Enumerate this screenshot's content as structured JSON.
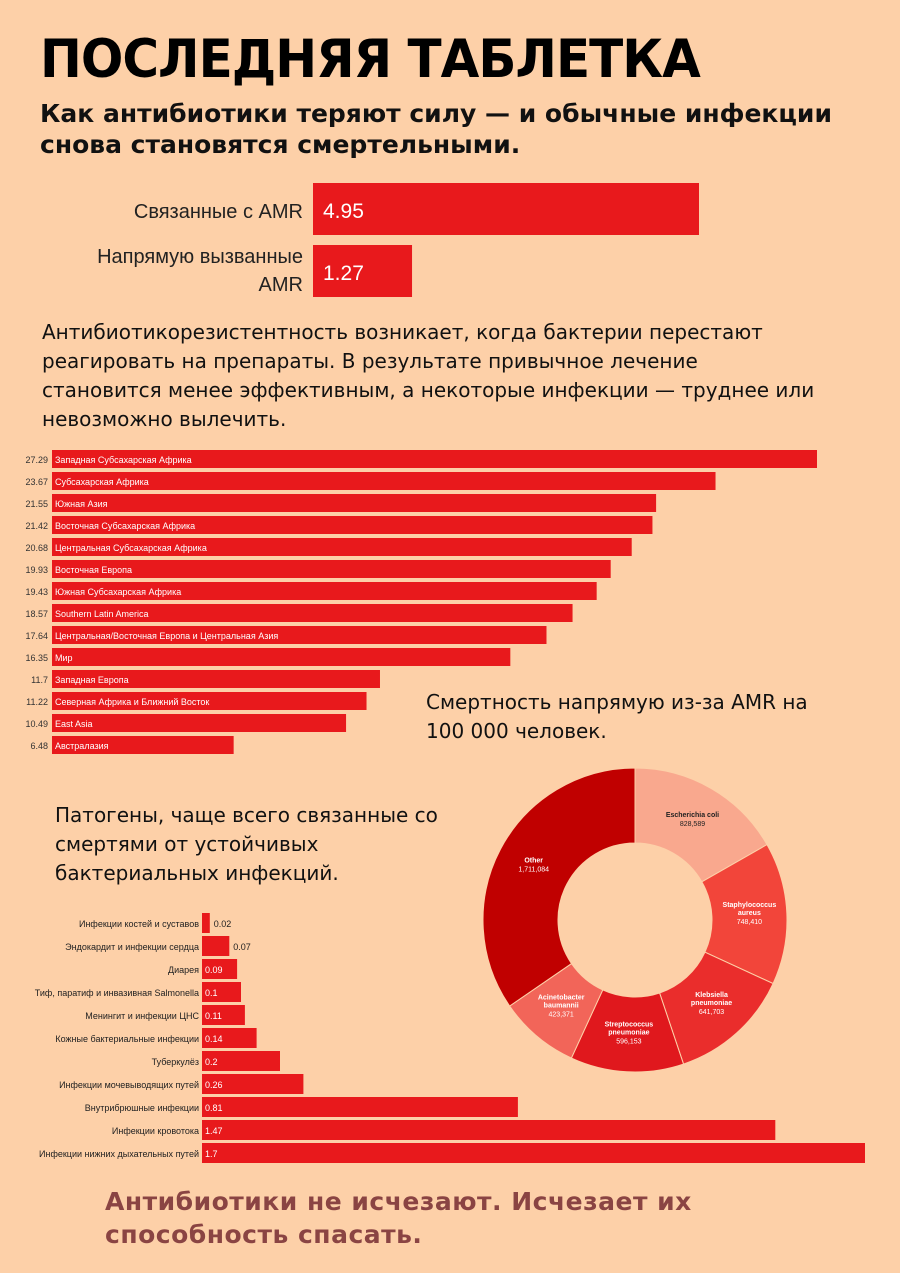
{
  "title": "ПОСЛЕДНЯЯ ТАБЛЕТКА",
  "subtitle": "Как антибиотики теряют силу — и обычные инфекции снова становятся смертельными.",
  "paragraph_main": "Антибиотикорезистентность возникает, когда бактерии перестают реагировать на препараты. В результате привычное лечение становится менее эффективным, а некоторые инфекции — труднее или невозможно вылечить.",
  "paragraph_mortality": "Смертность напрямую из-за AMR на 100 000 человек.",
  "paragraph_pathogens": "Патогены, чаще всего связанные со смертями от устойчивых бактериальных инфекций.",
  "footer": "Антибиотики не исчезают. Исчезает их способность спасать.",
  "colors": {
    "background": "#fdd0a8",
    "bar": "#e8191c",
    "footer": "#8a4443"
  },
  "chart_data": [
    {
      "type": "bar",
      "orientation": "horizontal",
      "categories": [
        "Связанные с AMR",
        "Напрямую вызванные AMR"
      ],
      "values": [
        4.95,
        1.27
      ],
      "title": ""
    },
    {
      "type": "bar",
      "orientation": "horizontal",
      "categories": [
        "Западная Субсахарская Африка",
        "Субсахарская Африка",
        "Южная Азия",
        "Восточная Субсахарская Африка",
        "Центральная Субсахарская Африка",
        "Восточная Европа",
        "Южная Субсахарская Африка",
        "Southern Latin America",
        "Центральная/Восточная Европа и Центральная Азия",
        "Мир",
        "Западная Европа",
        "Северная Африка и Ближний Восток",
        "East Asia",
        "Австралазия"
      ],
      "values": [
        27.29,
        23.67,
        21.55,
        21.42,
        20.68,
        19.93,
        19.43,
        18.57,
        17.64,
        16.35,
        11.7,
        11.22,
        10.49,
        6.48
      ],
      "title": ""
    },
    {
      "type": "pie",
      "donut": true,
      "categories": [
        "Escherichia coli",
        "Staphylococcus aureus",
        "Klebsiella pneumoniae",
        "Streptococcus pneumoniae",
        "Acinetobacter baumannii",
        "Other"
      ],
      "display_values": [
        "828,589",
        "748,410",
        "641,703",
        "596,153",
        "423,371",
        "1,711,084"
      ],
      "values": [
        828589,
        748410,
        641703,
        596153,
        423371,
        1711084
      ],
      "colors": [
        "#f9a88e",
        "#f2453a",
        "#ea2d2c",
        "#e0181d",
        "#f26559",
        "#c00000"
      ],
      "title": ""
    },
    {
      "type": "bar",
      "orientation": "horizontal",
      "categories": [
        "Инфекции костей и суставов",
        "Эндокардит и инфекции сердца",
        "Диарея",
        "Тиф, паратиф и инвазивная Salmonella",
        "Менингит и инфекции ЦНС",
        "Кожные бактериальные инфекции",
        "Туберкулёз",
        "Инфекции мочевыводящих путей",
        "Внутрибрюшные инфекции",
        "Инфекции кровотока",
        "Инфекции нижних дыхательных путей"
      ],
      "values": [
        0.02,
        0.07,
        0.09,
        0.1,
        0.11,
        0.14,
        0.2,
        0.26,
        0.81,
        1.47,
        1.7
      ],
      "title": ""
    }
  ]
}
